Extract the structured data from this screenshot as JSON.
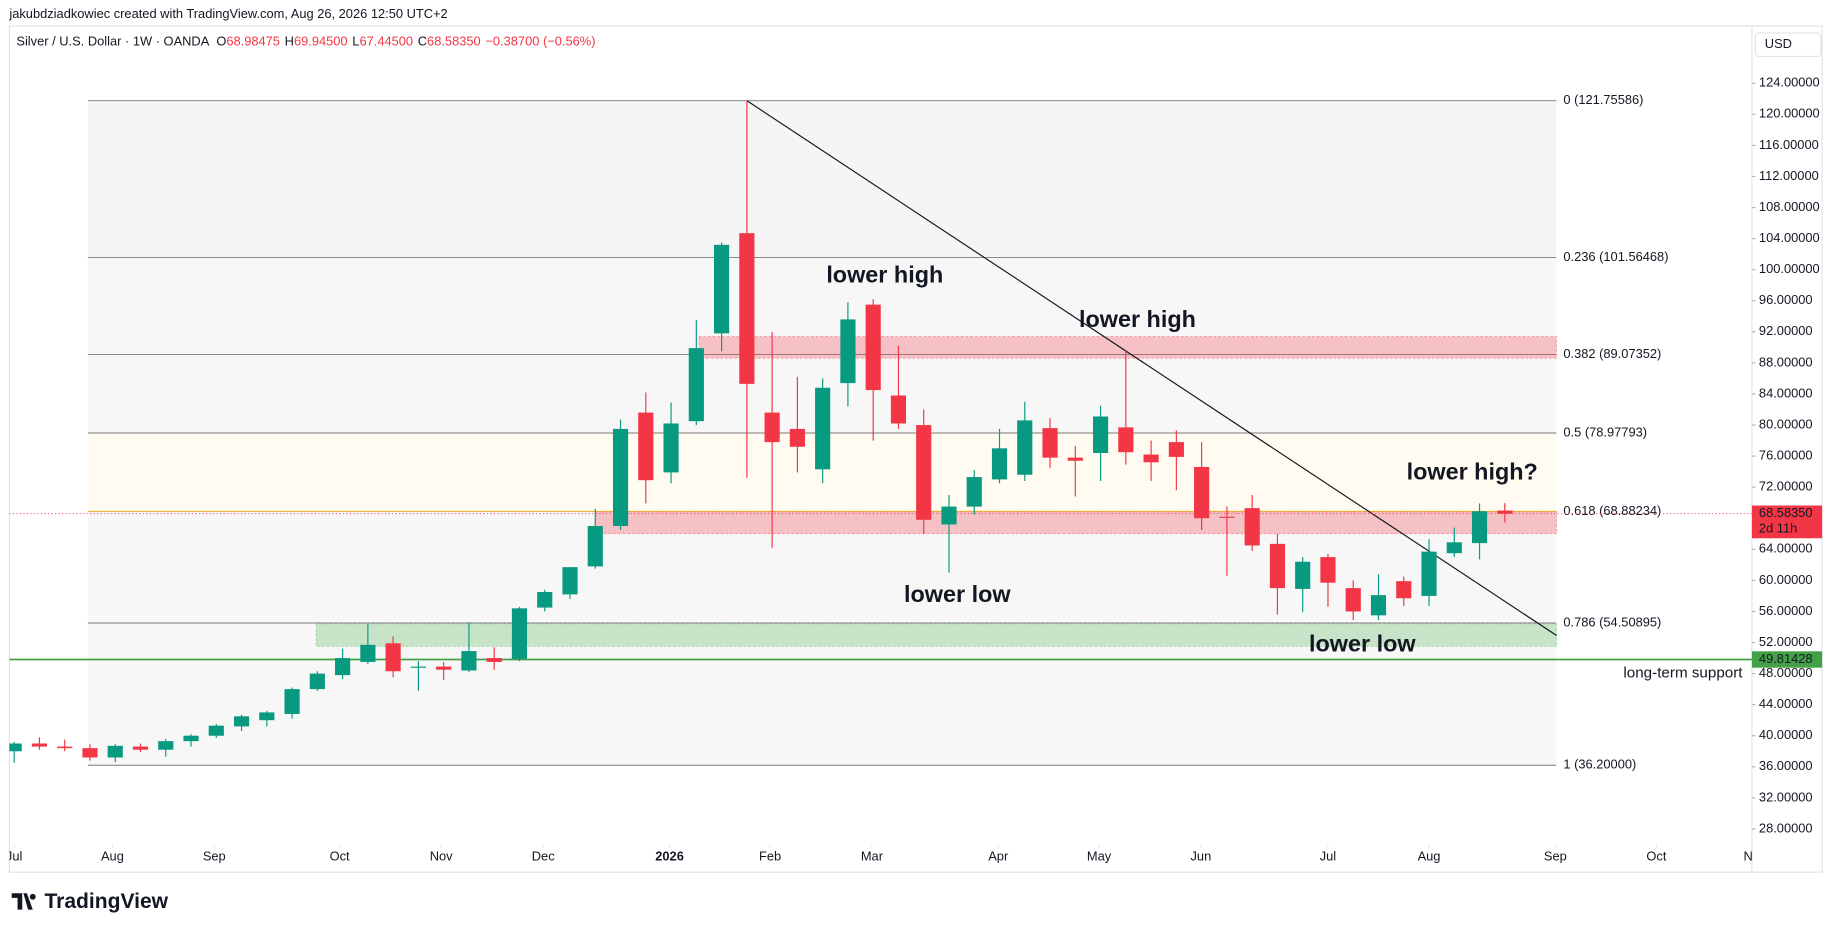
{
  "header": {
    "attribution": "jakubdziadkowiec created with TradingView.com, Aug 26, 2026 12:50 UTC+2",
    "symbol": "Silver / U.S. Dollar · 1W · OANDA",
    "ohlc": [
      {
        "key": "O",
        "value": "68.98475"
      },
      {
        "key": "H",
        "value": "69.94500"
      },
      {
        "key": "L",
        "value": "67.44500"
      },
      {
        "key": "C",
        "value": "68.58350"
      }
    ],
    "change": "−0.38700 (−0.56%)"
  },
  "currency": "USD",
  "footer": {
    "logo": "TradingView"
  },
  "chart_data": {
    "type": "candlestick",
    "up_color": "#089981",
    "down_color": "#f23645",
    "open": [
      38.0,
      39.0,
      38.6,
      38.4,
      37.2,
      38.6,
      38.2,
      39.3,
      40.0,
      41.2,
      42.0,
      42.8,
      46.0,
      47.8,
      49.5,
      51.9,
      48.8,
      48.9,
      48.4,
      50.0,
      49.9,
      56.5,
      58.2,
      61.8,
      67.0,
      81.6,
      73.9,
      80.5,
      91.8,
      104.7,
      81.6,
      79.5,
      74.3,
      85.4,
      95.5,
      83.8,
      80.0,
      67.2,
      69.5,
      73.0,
      73.6,
      79.6,
      75.8,
      76.4,
      79.7,
      76.2,
      77.8,
      74.6,
      68.2,
      69.3,
      64.7,
      58.9,
      63.0,
      59.0,
      55.5,
      59.9,
      58.0,
      63.5,
      64.8,
      68.98475
    ],
    "high": [
      39.2,
      39.8,
      39.5,
      38.9,
      38.9,
      39.0,
      39.6,
      40.2,
      41.5,
      42.7,
      43.2,
      46.2,
      48.3,
      51.2,
      54.4,
      52.8,
      49.6,
      49.5,
      54.6,
      51.4,
      56.6,
      58.8,
      61.7,
      69.2,
      80.7,
      84.2,
      82.9,
      93.5,
      103.5,
      121.76,
      92.0,
      86.2,
      86.0,
      95.8,
      96.2,
      90.2,
      82.0,
      71.0,
      74.2,
      79.5,
      83.0,
      80.9,
      77.3,
      82.5,
      89.7,
      78.0,
      79.3,
      77.8,
      69.5,
      71.0,
      66.0,
      63.0,
      63.4,
      60.0,
      60.8,
      60.5,
      65.3,
      66.8,
      69.9,
      69.945
    ],
    "low": [
      36.5,
      38.2,
      38.0,
      36.8,
      36.6,
      37.9,
      37.3,
      38.6,
      39.7,
      40.6,
      41.2,
      42.2,
      45.8,
      47.3,
      49.2,
      47.5,
      45.8,
      47.2,
      48.2,
      48.5,
      49.6,
      56.0,
      57.6,
      61.5,
      66.5,
      69.9,
      72.5,
      80.0,
      89.5,
      73.2,
      64.2,
      73.9,
      72.5,
      82.4,
      78.0,
      79.5,
      66.0,
      61.0,
      68.5,
      72.5,
      72.8,
      74.5,
      70.8,
      72.8,
      74.9,
      72.8,
      71.6,
      66.5,
      60.6,
      63.8,
      55.6,
      55.9,
      56.6,
      54.9,
      54.9,
      56.7,
      56.7,
      63.0,
      62.7,
      67.445
    ],
    "close": [
      39.0,
      38.6,
      38.4,
      37.2,
      38.7,
      38.2,
      39.3,
      40.0,
      41.3,
      42.5,
      43.0,
      46.0,
      48.0,
      50.0,
      51.7,
      48.3,
      48.9,
      48.5,
      50.9,
      49.5,
      56.4,
      58.5,
      61.7,
      67.0,
      79.5,
      72.9,
      80.2,
      89.9,
      103.2,
      85.3,
      77.8,
      77.2,
      84.8,
      93.6,
      84.5,
      80.2,
      67.8,
      69.5,
      73.3,
      77.0,
      80.6,
      75.8,
      75.4,
      81.1,
      76.5,
      75.2,
      75.9,
      68.0,
      68.1,
      64.5,
      59.0,
      62.4,
      59.7,
      56.0,
      58.1,
      57.7,
      63.7,
      64.9,
      68.9,
      68.5835
    ],
    "xlim": [
      -0.19,
      68.78
    ],
    "xticks": [
      {
        "value": 0,
        "label": "Jul"
      },
      {
        "value": 3.89,
        "label": "Aug"
      },
      {
        "value": 7.92,
        "label": "Sep"
      },
      {
        "value": 12.88,
        "label": "Oct"
      },
      {
        "value": 16.9,
        "label": "Nov"
      },
      {
        "value": 20.94,
        "label": "Dec"
      },
      {
        "value": 25.94,
        "label": "2026"
      },
      {
        "value": 29.92,
        "label": "Feb"
      },
      {
        "value": 33.95,
        "label": "Mar"
      },
      {
        "value": 38.95,
        "label": "Apr"
      },
      {
        "value": 42.94,
        "label": "May"
      },
      {
        "value": 46.97,
        "label": "Jun"
      },
      {
        "value": 52.0,
        "label": "Jul"
      },
      {
        "value": 56.0,
        "label": "Aug"
      },
      {
        "value": 61.0,
        "label": "Sep"
      },
      {
        "value": 65.0,
        "label": "Oct"
      },
      {
        "value": 68.9,
        "label": "Nov"
      }
    ],
    "ylim": [
      26.2,
      127.9
    ],
    "yticks": [
      {
        "value": 28,
        "label": "28.00000"
      },
      {
        "value": 32,
        "label": "32.00000"
      },
      {
        "value": 36,
        "label": "36.00000"
      },
      {
        "value": 40,
        "label": "40.00000"
      },
      {
        "value": 44,
        "label": "44.00000"
      },
      {
        "value": 48,
        "label": "48.00000"
      },
      {
        "value": 52,
        "label": "52.00000"
      },
      {
        "value": 56,
        "label": "56.00000"
      },
      {
        "value": 60,
        "label": "60.00000"
      },
      {
        "value": 64,
        "label": "64.00000"
      },
      {
        "value": 72,
        "label": "72.00000"
      },
      {
        "value": 76,
        "label": "76.00000"
      },
      {
        "value": 80,
        "label": "80.00000"
      },
      {
        "value": 84,
        "label": "84.00000"
      },
      {
        "value": 88,
        "label": "88.00000"
      },
      {
        "value": 92,
        "label": "92.00000"
      },
      {
        "value": 96,
        "label": "96.00000"
      },
      {
        "value": 100,
        "label": "100.00000"
      },
      {
        "value": 104,
        "label": "104.00000"
      },
      {
        "value": 108,
        "label": "108.00000"
      },
      {
        "value": 112,
        "label": "112.00000"
      },
      {
        "value": 116,
        "label": "116.00000"
      },
      {
        "value": 120,
        "label": "120.00000"
      },
      {
        "value": 124,
        "label": "124.00000"
      }
    ],
    "grid": false,
    "fib": {
      "x": [
        2.92,
        61.04
      ],
      "levels": [
        {
          "label": "0 (121.75586)",
          "value": 121.75586,
          "color": "#787b86",
          "band": "#f5f5f5"
        },
        {
          "label": "0.236 (101.56468)",
          "value": 101.56468,
          "color": "#787b86",
          "band": "#f7f7f7"
        },
        {
          "label": "0.382 (89.07352)",
          "value": 89.07352,
          "color": "#787b86",
          "band": "#f7f7f7"
        },
        {
          "label": "0.5 (78.97793)",
          "value": 78.97793,
          "color": "#787b86",
          "band": "#fffbf0"
        },
        {
          "label": "0.618 (68.88234)",
          "value": 68.88234,
          "color": "#e8b020",
          "band": "#f7f7f7"
        },
        {
          "label": "0.786 (54.50895)",
          "value": 54.50895,
          "color": "#787b86",
          "band": "#f7f7f7"
        },
        {
          "label": "1 (36.20000)",
          "value": 36.2,
          "color": "#787b86",
          "band": "#f7f7f7"
        }
      ]
    },
    "zones": [
      {
        "x": [
          27.1,
          61.05
        ],
        "y": [
          88.6,
          91.4
        ],
        "color": "#f23645"
      },
      {
        "x": [
          23.0,
          61.05
        ],
        "y": [
          66.0,
          68.8
        ],
        "color": "#f23645"
      },
      {
        "x": [
          11.95,
          61.05
        ],
        "y": [
          51.5,
          54.4
        ],
        "color": "#4caf50"
      }
    ],
    "trendline": {
      "x": [
        29,
        61.05
      ],
      "y": [
        121.76,
        52.9
      ]
    },
    "support": {
      "value": 49.81428,
      "label": "49.81428",
      "text": "long-term support",
      "color": "#43a047"
    },
    "last_price": {
      "value": 68.5835,
      "label": "68.58350",
      "countdown": "2d 11h"
    },
    "annotations": [
      {
        "text": "lower high",
        "x": 34.46,
        "y": 99.13
      },
      {
        "text": "lower high",
        "x": 44.46,
        "y": 93.4
      },
      {
        "text": "lower low",
        "x": 37.33,
        "y": 58.0
      },
      {
        "text": "lower low",
        "x": 53.36,
        "y": 51.66
      },
      {
        "text": "lower high?",
        "x": 57.71,
        "y": 73.8
      }
    ]
  }
}
